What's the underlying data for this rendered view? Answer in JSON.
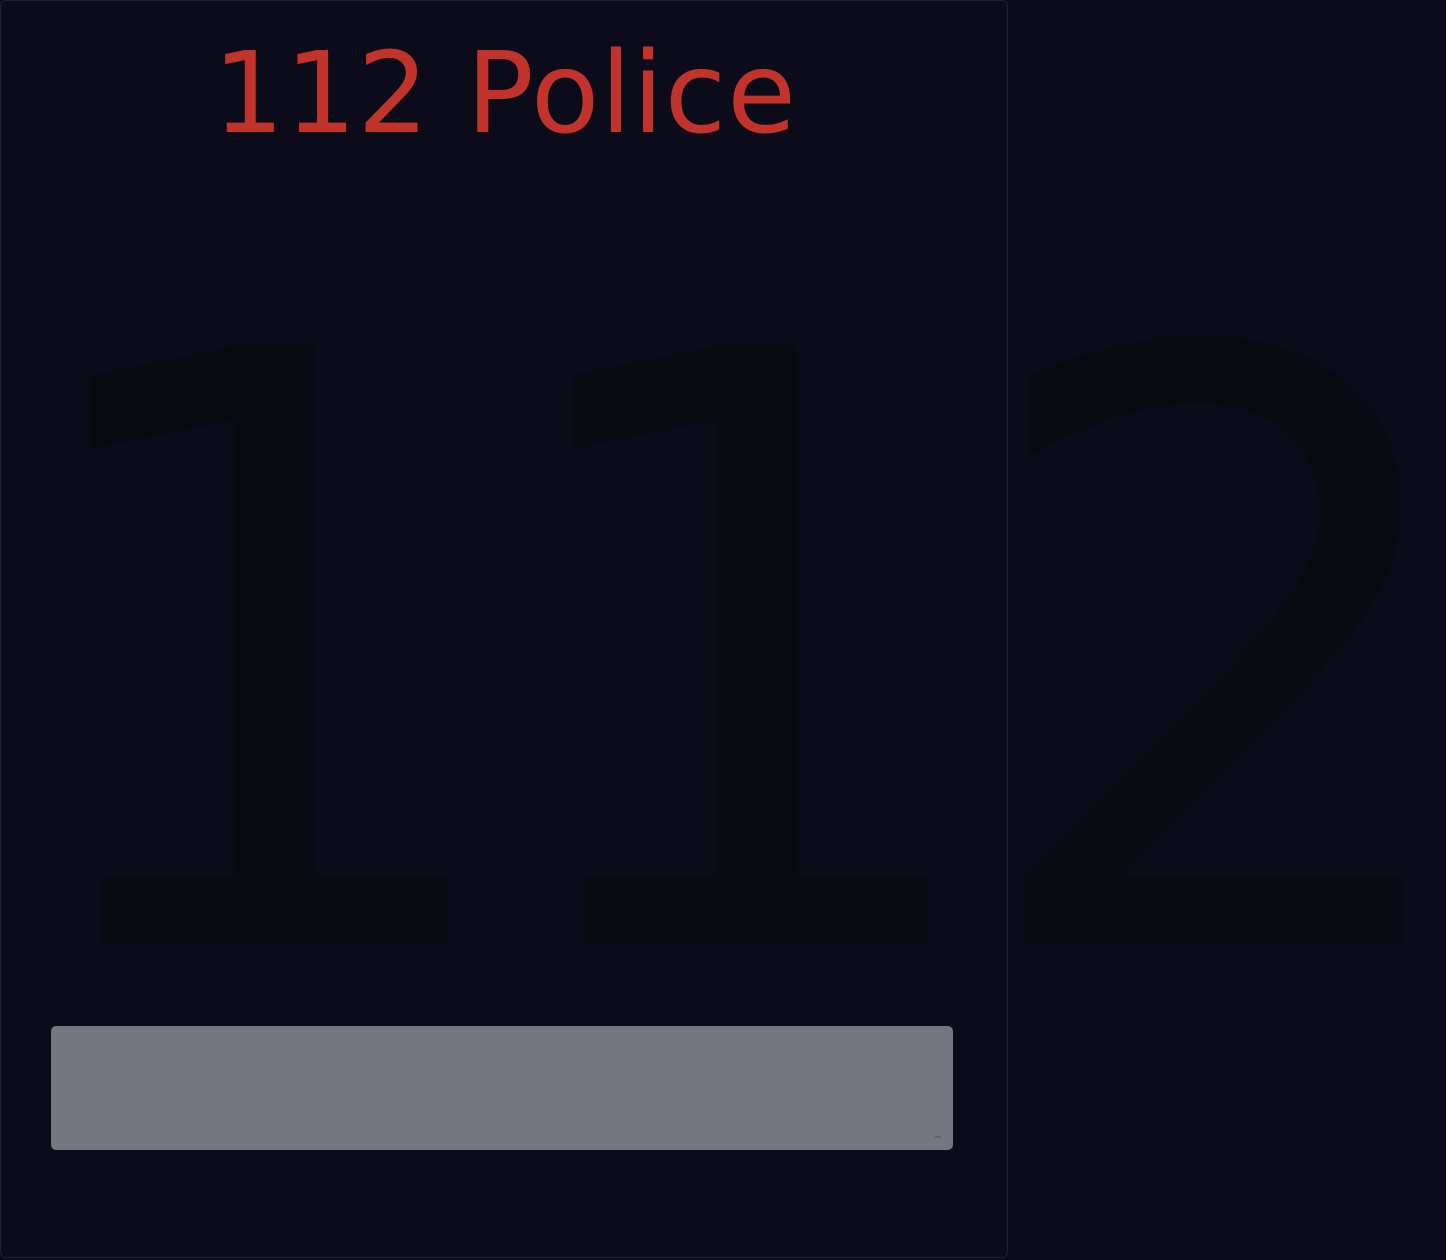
{
  "service": {
    "title": "112 Police",
    "number": "112"
  },
  "colors": {
    "background": "#0b0b1a",
    "title": "#c2342b",
    "number": "#0a0a12",
    "call_bar": "#74777f"
  }
}
